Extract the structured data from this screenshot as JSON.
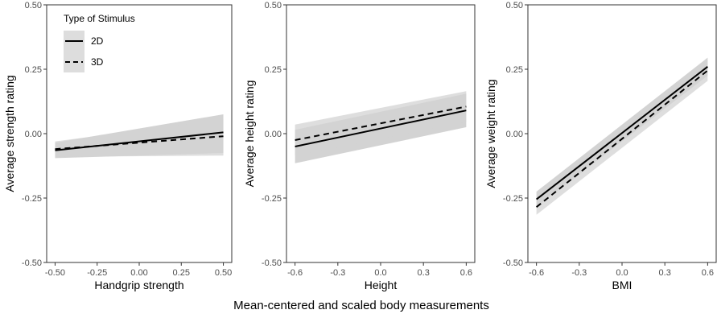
{
  "figure": {
    "supxlabel": "Mean-centered and scaled body measurements"
  },
  "legend": {
    "title": "Type of Stimulus",
    "placement": "top-left",
    "items": [
      {
        "label": "2D",
        "linestyle": "solid"
      },
      {
        "label": "3D",
        "linestyle": "dashed"
      }
    ]
  },
  "chart_data": [
    {
      "type": "line",
      "xlabel": "Handgrip strength",
      "ylabel": "Average strength rating",
      "xlim": [
        -0.55,
        0.55
      ],
      "ylim": [
        -0.5,
        0.5
      ],
      "xticks": [
        -0.5,
        -0.25,
        0,
        0.25,
        0.5
      ],
      "xtick_labels": [
        "-0.50",
        "-0.25",
        "0.00",
        "0.25",
        "0.50"
      ],
      "yticks": [
        -0.5,
        -0.25,
        0,
        0.25,
        0.5
      ],
      "ytick_labels": [
        "-0.50",
        "-0.25",
        "0.00",
        "0.25",
        "0.50"
      ],
      "grid": false,
      "series": [
        {
          "name": "2D",
          "linestyle": "solid",
          "x": [
            -0.5,
            0.5
          ],
          "y": [
            -0.065,
            0.005
          ],
          "ci_lower": [
            -0.095,
            -0.075
          ],
          "ci_upper": [
            -0.035,
            0.075
          ]
        },
        {
          "name": "3D",
          "linestyle": "dashed",
          "x": [
            -0.5,
            0.5
          ],
          "y": [
            -0.06,
            -0.01
          ],
          "ci_lower": [
            -0.09,
            -0.085
          ],
          "ci_upper": [
            -0.03,
            0.055
          ]
        }
      ]
    },
    {
      "type": "line",
      "xlabel": "Height",
      "ylabel": "Average height rating",
      "xlim": [
        -0.66,
        0.66
      ],
      "ylim": [
        -0.5,
        0.5
      ],
      "xticks": [
        -0.6,
        -0.3,
        0,
        0.3,
        0.6
      ],
      "xtick_labels": [
        "-0.6",
        "-0.3",
        "0.0",
        "0.3",
        "0.6"
      ],
      "yticks": [
        -0.5,
        -0.25,
        0,
        0.25,
        0.5
      ],
      "ytick_labels": [
        "-0.50",
        "-0.25",
        "0.00",
        "0.25",
        "0.50"
      ],
      "grid": false,
      "series": [
        {
          "name": "2D",
          "linestyle": "solid",
          "x": [
            -0.6,
            0.6
          ],
          "y": [
            -0.05,
            0.09
          ],
          "ci_lower": [
            -0.115,
            0.025
          ],
          "ci_upper": [
            0.015,
            0.155
          ]
        },
        {
          "name": "3D",
          "linestyle": "dashed",
          "x": [
            -0.6,
            0.6
          ],
          "y": [
            -0.025,
            0.105
          ],
          "ci_lower": [
            -0.085,
            0.045
          ],
          "ci_upper": [
            0.035,
            0.165
          ]
        }
      ]
    },
    {
      "type": "line",
      "xlabel": "BMI",
      "ylabel": "Average weight rating",
      "xlim": [
        -0.66,
        0.66
      ],
      "ylim": [
        -0.5,
        0.5
      ],
      "xticks": [
        -0.6,
        -0.3,
        0,
        0.3,
        0.6
      ],
      "xtick_labels": [
        "-0.6",
        "-0.3",
        "0.0",
        "0.3",
        "0.6"
      ],
      "yticks": [
        -0.5,
        -0.25,
        0,
        0.25,
        0.5
      ],
      "ytick_labels": [
        "-0.50",
        "-0.25",
        "0.00",
        "0.25",
        "0.50"
      ],
      "grid": false,
      "series": [
        {
          "name": "2D",
          "linestyle": "solid",
          "x": [
            -0.6,
            0.6
          ],
          "y": [
            -0.255,
            0.26
          ],
          "ci_lower": [
            -0.285,
            0.225
          ],
          "ci_upper": [
            -0.225,
            0.295
          ]
        },
        {
          "name": "3D",
          "linestyle": "dashed",
          "x": [
            -0.6,
            0.6
          ],
          "y": [
            -0.285,
            0.245
          ],
          "ci_lower": [
            -0.315,
            0.205
          ],
          "ci_upper": [
            -0.255,
            0.285
          ]
        }
      ]
    }
  ]
}
